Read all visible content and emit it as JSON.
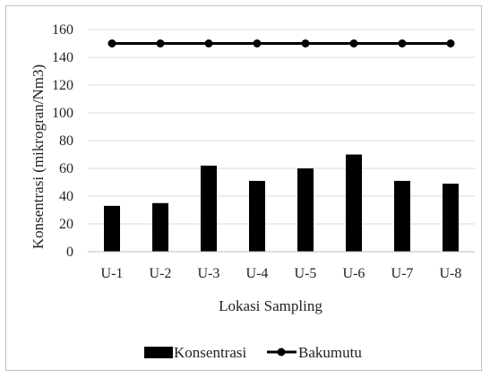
{
  "chart_data": {
    "type": "bar",
    "categories": [
      "U-1",
      "U-2",
      "U-3",
      "U-4",
      "U-5",
      "U-6",
      "U-7",
      "U-8"
    ],
    "series": [
      {
        "name": "Konsentrasi",
        "type": "bar",
        "values": [
          33,
          35,
          62,
          51,
          60,
          70,
          51,
          49
        ],
        "color": "#000000"
      },
      {
        "name": "Bakumutu",
        "type": "line",
        "values": [
          150,
          150,
          150,
          150,
          150,
          150,
          150,
          150
        ],
        "color": "#000000"
      }
    ],
    "title": "",
    "xlabel": "Lokasi Sampling",
    "ylabel": "Konsentrasi (mikrogran/Nm3)",
    "ylim": [
      0,
      160
    ],
    "yticks": [
      0,
      20,
      40,
      60,
      80,
      100,
      120,
      140,
      160
    ],
    "grid": true,
    "legend_position": "bottom"
  }
}
